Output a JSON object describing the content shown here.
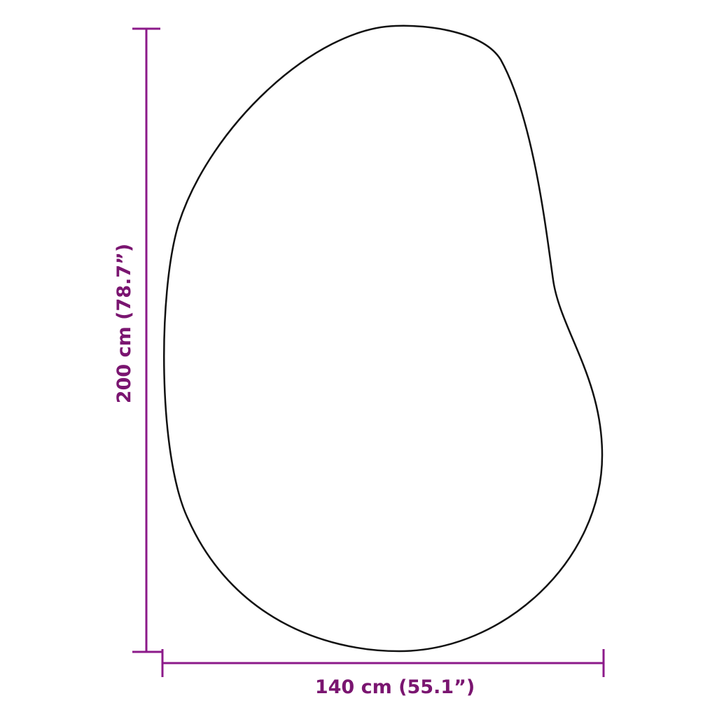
{
  "dimensions": {
    "height_label": "200 cm (78.7”)",
    "width_label": "140 cm (55.1”)"
  },
  "colors": {
    "dimension_line": "#8c1a8a",
    "dimension_text": "#7a1570",
    "outline": "#111111"
  }
}
